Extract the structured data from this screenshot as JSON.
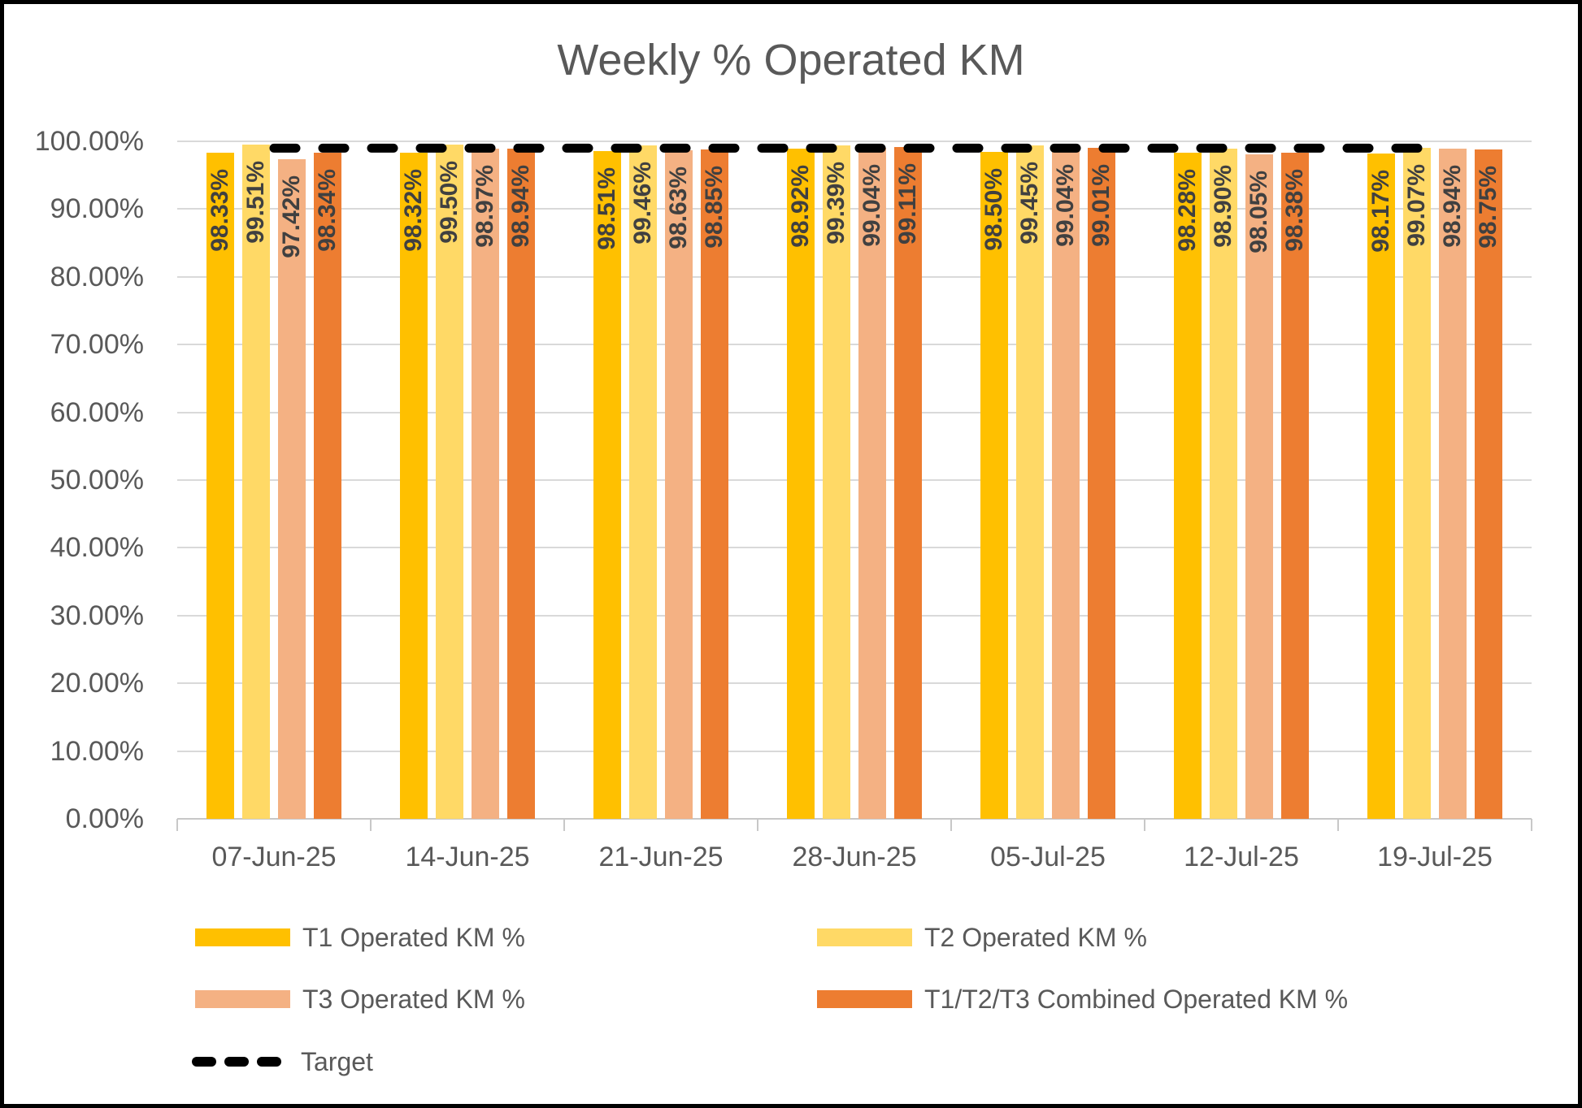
{
  "title": "Weekly % Operated KM",
  "chart_data": {
    "type": "bar",
    "title": "Weekly % Operated KM",
    "categories": [
      "07-Jun-25",
      "14-Jun-25",
      "21-Jun-25",
      "28-Jun-25",
      "05-Jul-25",
      "12-Jul-25",
      "19-Jul-25"
    ],
    "series": [
      {
        "name": "T1 Operated KM %",
        "color": "#FFC000",
        "values": [
          98.33,
          98.32,
          98.51,
          98.92,
          98.5,
          98.28,
          98.17
        ]
      },
      {
        "name": "T2 Operated KM %",
        "color": "#FFD966",
        "values": [
          99.51,
          99.5,
          99.46,
          99.39,
          99.45,
          98.9,
          99.07
        ]
      },
      {
        "name": "T3 Operated KM %",
        "color": "#F4B183",
        "values": [
          97.42,
          98.97,
          98.63,
          99.04,
          99.04,
          98.05,
          98.94
        ]
      },
      {
        "name": "T1/T2/T3 Combined Operated KM %",
        "color": "#ED7D31",
        "values": [
          98.34,
          98.94,
          98.85,
          99.11,
          99.01,
          98.38,
          98.75
        ]
      }
    ],
    "target_line": {
      "label": "Target",
      "value": 99.0,
      "color": "#000000",
      "style": "dashed-round"
    },
    "y_axis": {
      "min": 0,
      "max": 100,
      "step": 10,
      "format": "percent",
      "tick_labels_top_to_bottom": [
        "100.00%",
        "90.00%",
        "80.00%",
        "70.00%",
        "60.00%",
        "50.00%",
        "40.00%",
        "30.00%",
        "20.00%",
        "10.00%",
        "0.00%"
      ]
    },
    "data_labels": {
      "visible": true,
      "format": "0.00%",
      "rotation": "vertical",
      "position": "inside-end",
      "color": "#404040"
    },
    "legend_position": "bottom",
    "grid": "horizontal"
  },
  "colors": {
    "title_text": "#595959",
    "axis_text": "#595959",
    "legend_text": "#595959",
    "gridline": "#D9D9D9",
    "axis_line": "#C8C8C8",
    "background": "#FFFFFF",
    "border": "#000000"
  }
}
